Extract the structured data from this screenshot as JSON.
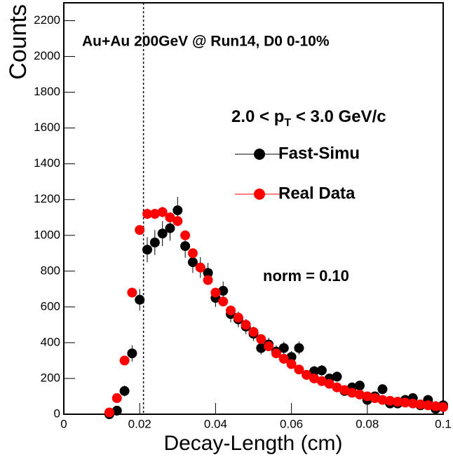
{
  "chart_data": {
    "type": "scatter",
    "title": "Au+Au 200GeV @ Run14, D0 0-10%",
    "pt_label": [
      "2.0 < p",
      "T",
      " < 3.0 GeV/c"
    ],
    "annotation": "norm = 0.10",
    "x_label": "Decay-Length (cm)",
    "y_label": "Counts",
    "xlim": [
      0,
      0.1
    ],
    "ylim": [
      0,
      2300
    ],
    "xticks": [
      0,
      0.02,
      0.04,
      0.06,
      0.08,
      0.1
    ],
    "yticks": [
      0,
      200,
      400,
      600,
      800,
      1000,
      1200,
      1400,
      1600,
      1800,
      2000,
      2200
    ],
    "vline": 0.021,
    "x": [
      0.012,
      0.014,
      0.016,
      0.018,
      0.02,
      0.022,
      0.024,
      0.026,
      0.028,
      0.03,
      0.032,
      0.034,
      0.036,
      0.038,
      0.04,
      0.042,
      0.044,
      0.046,
      0.048,
      0.05,
      0.052,
      0.054,
      0.056,
      0.058,
      0.06,
      0.062,
      0.064,
      0.066,
      0.068,
      0.07,
      0.072,
      0.074,
      0.076,
      0.078,
      0.08,
      0.082,
      0.084,
      0.086,
      0.088,
      0.09,
      0.092,
      0.094,
      0.096,
      0.098,
      0.1
    ],
    "series": [
      {
        "name": "Fast-Simu",
        "color": "#000000",
        "values": [
          0,
          20,
          130,
          340,
          640,
          920,
          960,
          1010,
          1040,
          1140,
          940,
          850,
          820,
          790,
          650,
          690,
          560,
          530,
          490,
          450,
          370,
          390,
          350,
          370,
          320,
          370,
          220,
          240,
          245,
          200,
          210,
          130,
          150,
          160,
          80,
          100,
          140,
          60,
          60,
          80,
          90,
          50,
          80,
          30,
          50
        ],
        "errors": [
          5,
          15,
          30,
          45,
          60,
          70,
          70,
          70,
          70,
          75,
          65,
          60,
          58,
          56,
          50,
          52,
          46,
          44,
          42,
          40,
          36,
          37,
          35,
          36,
          33,
          36,
          28,
          30,
          30,
          27,
          28,
          22,
          23,
          24,
          17,
          19,
          23,
          15,
          15,
          17,
          18,
          14,
          17,
          11,
          14
        ]
      },
      {
        "name": "Real Data",
        "color": "#ff0000",
        "values": [
          10,
          90,
          300,
          680,
          1030,
          1120,
          1120,
          1130,
          1100,
          1080,
          1000,
          900,
          820,
          750,
          680,
          630,
          580,
          540,
          500,
          460,
          420,
          380,
          340,
          310,
          280,
          250,
          220,
          200,
          185,
          170,
          150,
          135,
          120,
          110,
          100,
          90,
          80,
          75,
          70,
          65,
          60,
          55,
          50,
          45,
          40
        ],
        "errors": [
          3,
          8,
          15,
          22,
          28,
          30,
          30,
          30,
          30,
          29,
          28,
          26,
          25,
          24,
          23,
          22,
          21,
          20,
          19,
          18,
          18,
          17,
          16,
          15,
          14,
          14,
          13,
          12,
          12,
          11,
          11,
          10,
          10,
          9,
          9,
          8,
          8,
          8,
          7,
          7,
          7,
          7,
          6,
          6,
          6
        ]
      }
    ]
  }
}
